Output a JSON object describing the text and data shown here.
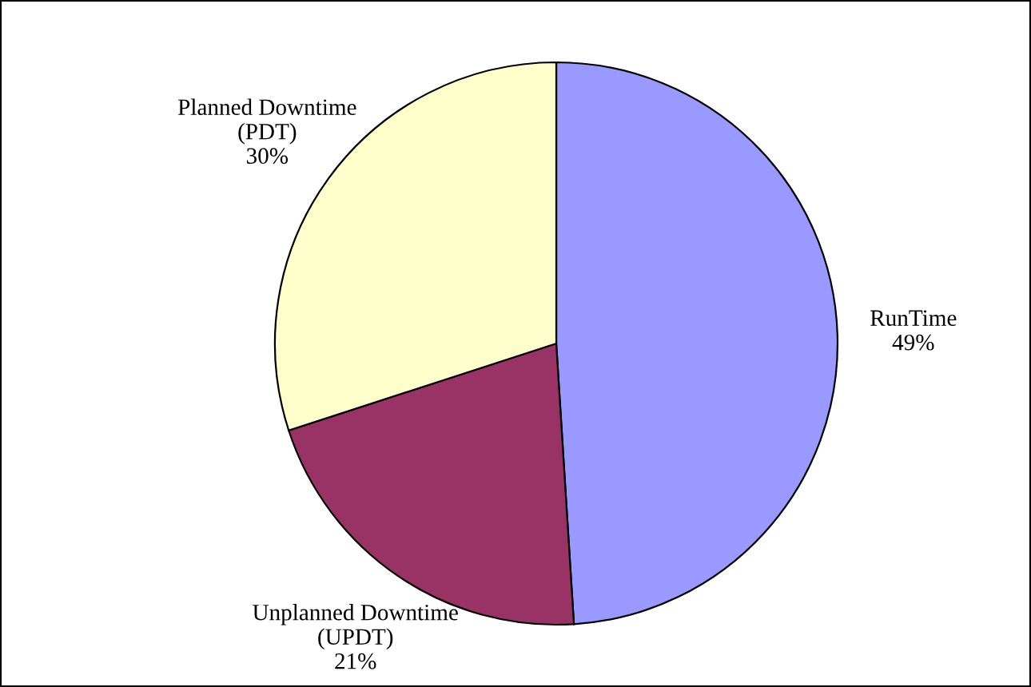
{
  "chart_data": {
    "type": "pie",
    "categories": [
      "RunTime",
      "Unplanned Downtime\n(UPDT)",
      "Planned Downtime\n(PDT)"
    ],
    "values": [
      49,
      21,
      30
    ],
    "colors": [
      "#9999ff",
      "#993366",
      "#ffffcc"
    ],
    "value_labels": [
      "49%",
      "21%",
      "30%"
    ],
    "legend": false
  }
}
